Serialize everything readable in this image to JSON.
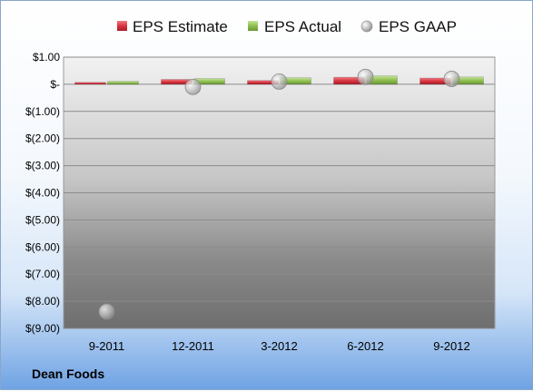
{
  "chart_data": {
    "type": "bar",
    "title": "",
    "xlabel": "",
    "ylabel": "",
    "categories": [
      "9-2011",
      "12-2011",
      "3-2012",
      "6-2012",
      "9-2012"
    ],
    "ylim": [
      -9.0,
      1.0
    ],
    "yticks": [
      1.0,
      0.0,
      -1.0,
      -2.0,
      -3.0,
      -4.0,
      -5.0,
      -6.0,
      -7.0,
      -8.0,
      -9.0
    ],
    "ytick_labels": [
      "$1.00",
      "$-",
      "$(1.00)",
      "$(2.00)",
      "$(3.00)",
      "$(4.00)",
      "$(5.00)",
      "$(6.00)",
      "$(7.00)",
      "$(8.00)",
      "$(9.00)"
    ],
    "grid": true,
    "legend_position": "top",
    "series": [
      {
        "name": "EPS Estimate",
        "kind": "bar",
        "color": "#d9333f",
        "values": [
          0.07,
          0.18,
          0.14,
          0.26,
          0.23
        ]
      },
      {
        "name": "EPS Actual",
        "kind": "bar",
        "color": "#8fc04f",
        "values": [
          0.11,
          0.21,
          0.24,
          0.31,
          0.27
        ]
      },
      {
        "name": "EPS GAAP",
        "kind": "scatter",
        "color": "#b3b3b3",
        "values": [
          -8.38,
          -0.1,
          0.1,
          0.27,
          0.2
        ]
      }
    ]
  },
  "footer": {
    "company": "Dean Foods"
  }
}
